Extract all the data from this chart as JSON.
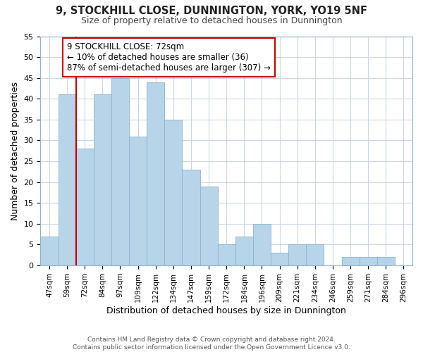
{
  "title": "9, STOCKHILL CLOSE, DUNNINGTON, YORK, YO19 5NF",
  "subtitle": "Size of property relative to detached houses in Dunnington",
  "xlabel": "Distribution of detached houses by size in Dunnington",
  "ylabel": "Number of detached properties",
  "footer1": "Contains HM Land Registry data © Crown copyright and database right 2024.",
  "footer2": "Contains public sector information licensed under the Open Government Licence v3.0.",
  "bin_labels": [
    "47sqm",
    "59sqm",
    "72sqm",
    "84sqm",
    "97sqm",
    "109sqm",
    "122sqm",
    "134sqm",
    "147sqm",
    "159sqm",
    "172sqm",
    "184sqm",
    "196sqm",
    "209sqm",
    "221sqm",
    "234sqm",
    "246sqm",
    "259sqm",
    "271sqm",
    "284sqm",
    "296sqm"
  ],
  "bar_heights": [
    7,
    41,
    28,
    41,
    45,
    31,
    44,
    35,
    23,
    19,
    5,
    7,
    10,
    3,
    5,
    5,
    0,
    2,
    2,
    2,
    0
  ],
  "highlight_index": 2,
  "bar_color": "#b8d4e8",
  "bar_edge_color": "#8ab4d0",
  "highlight_line_color": "#cc0000",
  "annotation_text": "9 STOCKHILL CLOSE: 72sqm\n← 10% of detached houses are smaller (36)\n87% of semi-detached houses are larger (307) →",
  "annotation_box_color": "#ffffff",
  "annotation_box_edge": "#cc0000",
  "ylim": [
    0,
    55
  ],
  "yticks": [
    0,
    5,
    10,
    15,
    20,
    25,
    30,
    35,
    40,
    45,
    50,
    55
  ],
  "background_color": "#ffffff",
  "grid_color": "#c8d8e8",
  "title_color": "#222222",
  "subtitle_color": "#444444",
  "footer_color": "#555555"
}
